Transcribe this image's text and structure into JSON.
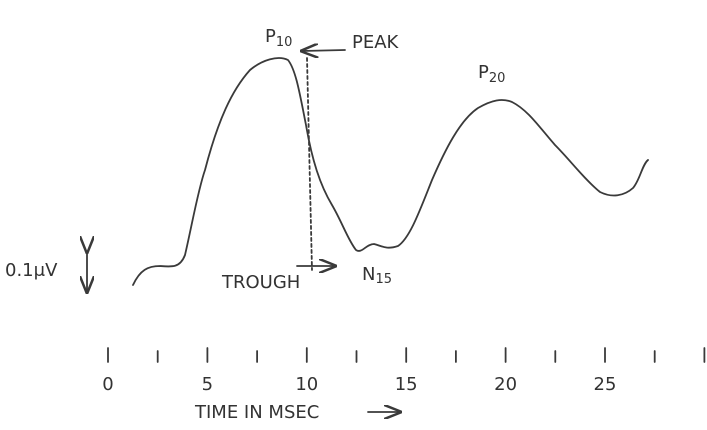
{
  "labels": {
    "p10": {
      "letter": "P",
      "sub": "10"
    },
    "peak": "PEAK",
    "p20": {
      "letter": "P",
      "sub": "20"
    },
    "n15": {
      "letter": "N",
      "sub": "15"
    },
    "trough": "TROUGH",
    "scale": "0.1μV"
  },
  "axis": {
    "tick_labels": [
      "0",
      "5",
      "10",
      "15",
      "20",
      "25"
    ],
    "title": "TIME IN MSEC"
  }
}
